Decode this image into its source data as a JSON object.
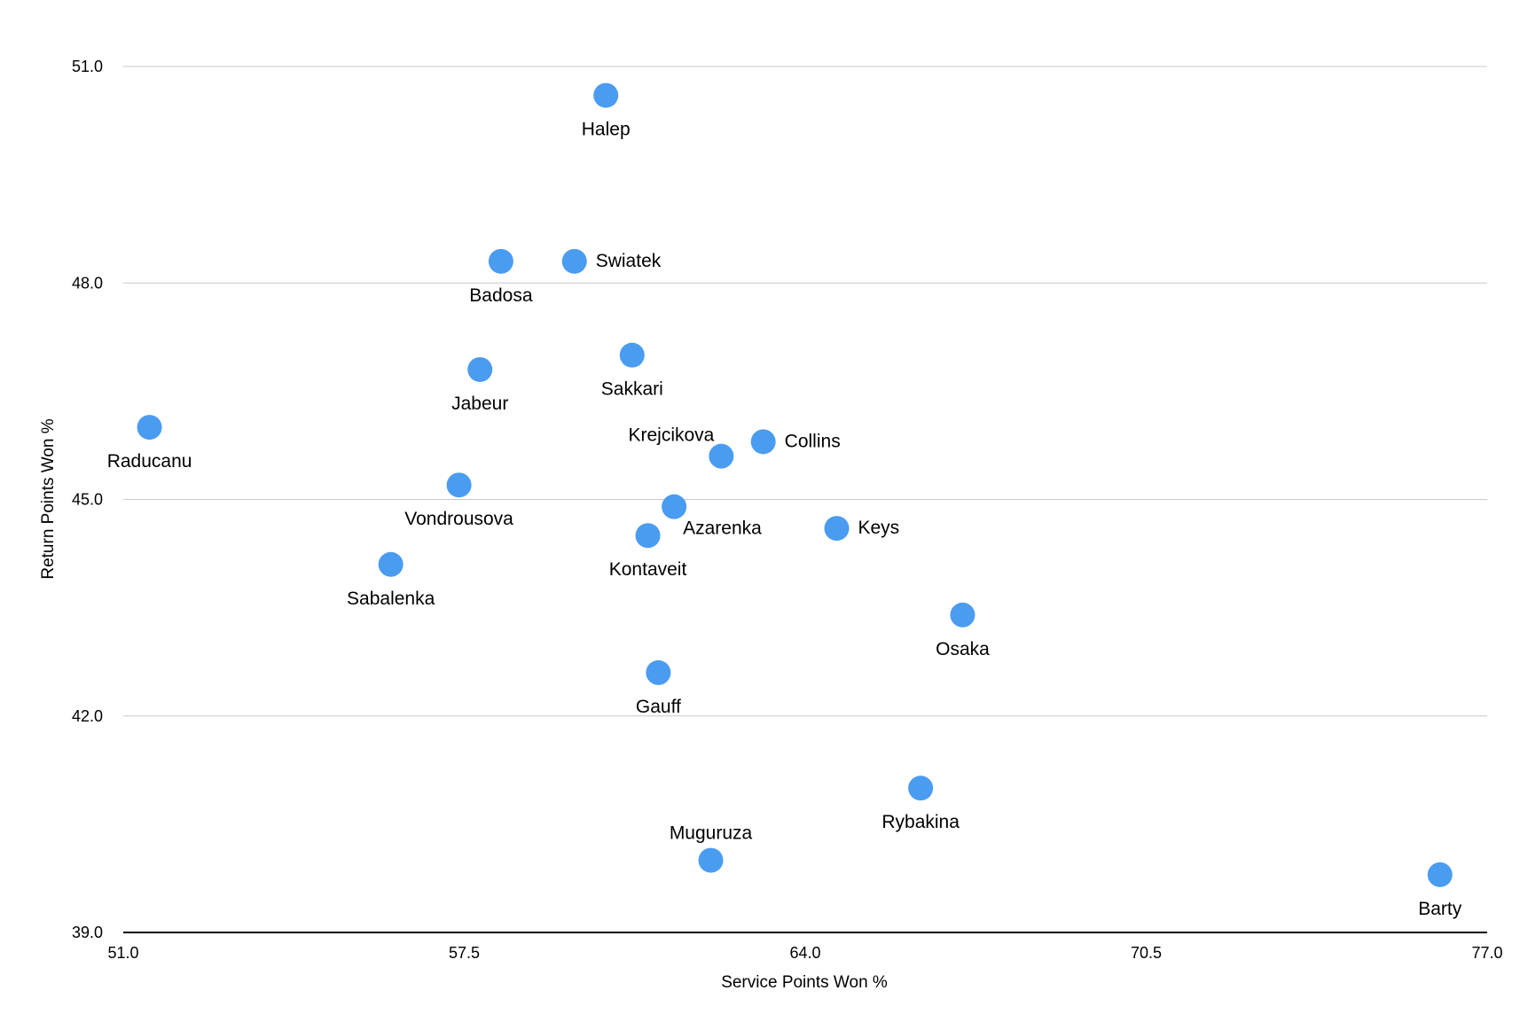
{
  "chart_data": {
    "type": "scatter",
    "title": "",
    "xlabel": "Service Points Won %",
    "ylabel": "Return Points Won %",
    "xlim": [
      51.0,
      77.0
    ],
    "ylim": [
      39.0,
      51.0
    ],
    "xticks": [
      "51.0",
      "57.5",
      "64.0",
      "70.5",
      "77.0"
    ],
    "yticks": [
      "39.0",
      "42.0",
      "45.0",
      "48.0",
      "51.0"
    ],
    "grid": true,
    "legend": "none",
    "marker_color": "#4a9cf0",
    "points": [
      {
        "label": "Halep",
        "x": 60.2,
        "y": 50.6,
        "pos": "below"
      },
      {
        "label": "Badosa",
        "x": 58.2,
        "y": 48.3,
        "pos": "below"
      },
      {
        "label": "Swiatek",
        "x": 59.6,
        "y": 48.3,
        "pos": "right"
      },
      {
        "label": "Sakkari",
        "x": 60.7,
        "y": 47.0,
        "pos": "below"
      },
      {
        "label": "Jabeur",
        "x": 57.8,
        "y": 46.8,
        "pos": "below"
      },
      {
        "label": "Raducanu",
        "x": 51.5,
        "y": 46.0,
        "pos": "below"
      },
      {
        "label": "Collins",
        "x": 63.2,
        "y": 45.8,
        "pos": "right"
      },
      {
        "label": "Krejcikova",
        "x": 62.4,
        "y": 45.6,
        "pos": "above-left"
      },
      {
        "label": "Vondrousova",
        "x": 57.4,
        "y": 45.2,
        "pos": "below"
      },
      {
        "label": "Azarenka",
        "x": 61.5,
        "y": 44.9,
        "pos": "below-right"
      },
      {
        "label": "Keys",
        "x": 64.6,
        "y": 44.6,
        "pos": "right"
      },
      {
        "label": "Kontaveit",
        "x": 61.0,
        "y": 44.5,
        "pos": "below"
      },
      {
        "label": "Sabalenka",
        "x": 56.1,
        "y": 44.1,
        "pos": "below"
      },
      {
        "label": "Osaka",
        "x": 67.0,
        "y": 43.4,
        "pos": "below"
      },
      {
        "label": "Gauff",
        "x": 61.2,
        "y": 42.6,
        "pos": "below"
      },
      {
        "label": "Rybakina",
        "x": 66.2,
        "y": 41.0,
        "pos": "below"
      },
      {
        "label": "Muguruza",
        "x": 62.2,
        "y": 40.0,
        "pos": "above"
      },
      {
        "label": "Barty",
        "x": 76.1,
        "y": 39.8,
        "pos": "below"
      }
    ]
  }
}
